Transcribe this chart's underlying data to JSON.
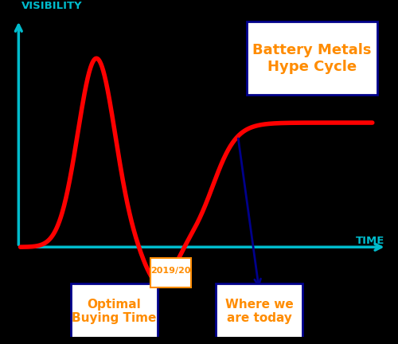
{
  "title": "Battery Metals\nHype Cycle",
  "title_color": "#FF8C00",
  "title_fontsize": 13,
  "ylabel": "VISIBILITY",
  "xlabel": "TIME",
  "axis_color": "#00BBCC",
  "curve_color": "#FF0000",
  "curve_linewidth": 4,
  "annotation_arrow_color": "#00008B",
  "annotation_text_color": "#FF8C00",
  "annotation1_label": "Optimal\nBuying Time",
  "annotation2_label": "Where we\nare today",
  "annotation_date": "2019/20",
  "bg_color": "#000000",
  "box_edge_color": "#00008B",
  "box_face_color": "#FFFFFF"
}
